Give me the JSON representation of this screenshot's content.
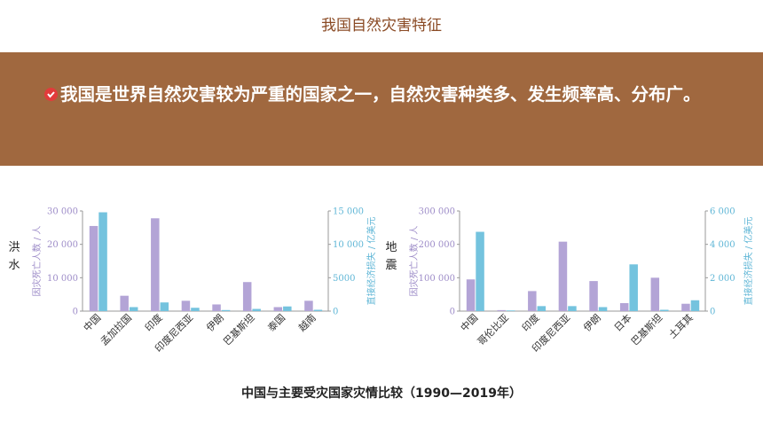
{
  "header": {
    "title": "我国自然灾害特征"
  },
  "banner": {
    "text": "我国是世界自然灾害较为严重的国家之一，自然灾害种类多、发生频率高、分布广。"
  },
  "side_labels": {
    "flood": "洪水",
    "quake": "地震"
  },
  "caption": "中国与主要受灾国家灾情比较（1990—2019年）",
  "colors": {
    "deaths": "#b3a4d6",
    "loss": "#74c3de",
    "left_axis_text": "#9d8cc8",
    "right_axis_text": "#5fb6d6"
  },
  "chart_data": [
    {
      "type": "bar",
      "categories": [
        "中国",
        "孟加拉国",
        "印度",
        "印度尼西亚",
        "伊朗",
        "巴基斯坦",
        "泰国",
        "越南"
      ],
      "series": [
        {
          "values": [
            25500,
            4600,
            27800,
            3100,
            2000,
            8700,
            1200,
            3100
          ]
        },
        {
          "values": [
            14800,
            600,
            1300,
            500,
            160,
            330,
            700,
            200
          ]
        }
      ],
      "ylabel": "因灾死亡人数 / 人",
      "y2label": "直接经济损失 / 亿美元",
      "ylim": [
        0,
        30000
      ],
      "y2lim": [
        0,
        15000
      ],
      "yticks": [
        "0",
        "10 000",
        "20 000",
        "30 000"
      ],
      "y2ticks": [
        "0",
        "5000",
        "10 000",
        "15 000"
      ]
    },
    {
      "type": "bar",
      "categories": [
        "中国",
        "哥伦比亚",
        "印度",
        "印度尼西亚",
        "伊朗",
        "日本",
        "巴基斯坦",
        "土耳其"
      ],
      "series": [
        {
          "values": [
            95000,
            3000,
            60000,
            208000,
            90000,
            24000,
            100000,
            22000
          ]
        },
        {
          "values": [
            4750,
            40,
            300,
            300,
            240,
            2800,
            80,
            650
          ]
        }
      ],
      "ylabel": "因灾死亡人数 / 人",
      "y2label": "直接经济损失 / 亿美元",
      "ylim": [
        0,
        300000
      ],
      "y2lim": [
        0,
        6000
      ],
      "yticks": [
        "0",
        "100 000",
        "200 000",
        "300 000"
      ],
      "y2ticks": [
        "0",
        "2 000",
        "4 000",
        "6 000"
      ]
    }
  ]
}
